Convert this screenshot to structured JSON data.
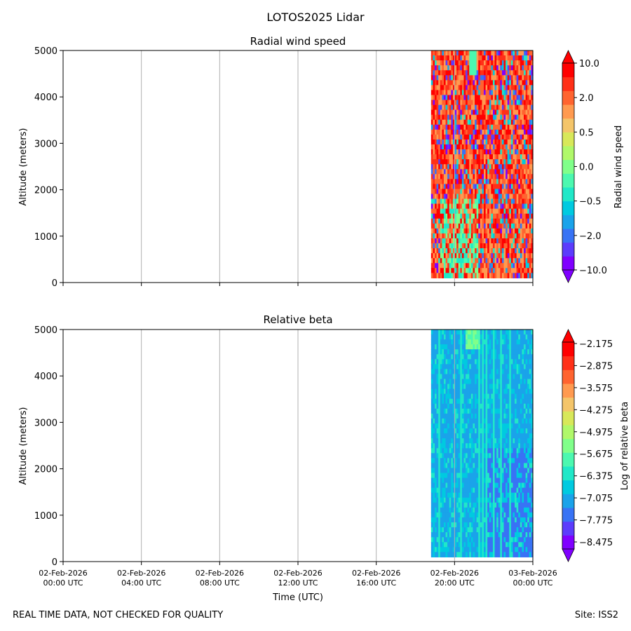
{
  "figure_title": "LOTOS2025 Lidar",
  "footer": {
    "quality_note": "REAL TIME DATA, NOT CHECKED FOR QUALITY",
    "site": "Site: ISS2"
  },
  "colors": {
    "rainbow": [
      "#8000ff",
      "#5c3cfc",
      "#3873f5",
      "#1aa3ea",
      "#00cae0",
      "#20e8c8",
      "#4cf8b0",
      "#80ff8a",
      "#b0f86a",
      "#d8e85a",
      "#f4c56a",
      "#ff9a50",
      "#ff6430",
      "#ff3018",
      "#ff0000"
    ],
    "grid": "#b0b0b0"
  },
  "chart_data": [
    {
      "type": "heatmap",
      "title": "Radial wind speed",
      "ylabel": "Altitude (meters)",
      "xlabel": "",
      "ylim": [
        0,
        5000
      ],
      "yticks": [
        "0",
        "1000",
        "2000",
        "3000",
        "4000",
        "5000"
      ],
      "x_range_hours": [
        0,
        24
      ],
      "data_start_hour": 18.8,
      "data_min_altitude": 100,
      "colorbar": {
        "label": "Radial wind speed",
        "tick_labels": [
          "−10.0",
          "−2.0",
          "−0.5",
          "0.0",
          "0.5",
          "2.0",
          "10.0"
        ],
        "extend": "both"
      }
    },
    {
      "type": "heatmap",
      "title": "Relative beta",
      "ylabel": "Altitude (meters)",
      "xlabel": "Time (UTC)",
      "ylim": [
        0,
        5000
      ],
      "yticks": [
        "0",
        "1000",
        "2000",
        "3000",
        "4000",
        "5000"
      ],
      "x_range_hours": [
        0,
        24
      ],
      "xticks": [
        {
          "date": "02-Feb-2026",
          "time": "00:00 UTC"
        },
        {
          "date": "02-Feb-2026",
          "time": "04:00 UTC"
        },
        {
          "date": "02-Feb-2026",
          "time": "08:00 UTC"
        },
        {
          "date": "02-Feb-2026",
          "time": "12:00 UTC"
        },
        {
          "date": "02-Feb-2026",
          "time": "16:00 UTC"
        },
        {
          "date": "02-Feb-2026",
          "time": "20:00 UTC"
        },
        {
          "date": "03-Feb-2026",
          "time": "00:00 UTC"
        }
      ],
      "data_start_hour": 18.8,
      "data_min_altitude": 100,
      "colorbar": {
        "label": "Log of relative beta",
        "tick_labels": [
          "−2.175",
          "−2.875",
          "−3.575",
          "−4.275",
          "−4.975",
          "−5.675",
          "−6.375",
          "−7.075",
          "−7.775",
          "−8.475"
        ],
        "extend": "both"
      }
    }
  ]
}
